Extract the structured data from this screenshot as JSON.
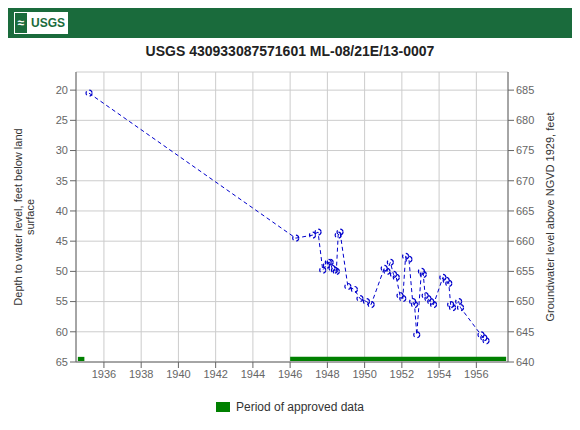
{
  "chart_data": {
    "type": "line",
    "title": "USGS 430933087571601 ML-08/21E/13-0007",
    "y_label": "Depth to water level, feet below land\n surface",
    "y2_label": "Groundwater level above NGVD 1929, feet",
    "annotations": [
      {
        "text": "≈"
      },
      {
        "text": "USGS",
        "color": "#1a6b3c"
      }
    ],
    "xlim": [
      1934.5,
      1957.7
    ],
    "xticks": [
      1936,
      1938,
      1940,
      1942,
      1944,
      1946,
      1948,
      1950,
      1952,
      1954,
      1956
    ],
    "ylim": [
      65,
      17
    ],
    "yticks": [
      20,
      25,
      30,
      35,
      40,
      45,
      50,
      55,
      60,
      65
    ],
    "y2lim": [
      640,
      688
    ],
    "y2ticks": [
      685,
      680,
      675,
      670,
      665,
      660,
      655,
      650,
      645,
      640
    ],
    "grid": true,
    "legend": "bottom",
    "x": [
      1935.2,
      1946.3,
      1947.2,
      1947.5,
      1947.75,
      1947.95,
      1948.05,
      1948.15,
      1948.25,
      1948.38,
      1948.48,
      1948.58,
      1948.68,
      1949.1,
      1949.45,
      1949.75,
      1950.1,
      1950.35,
      1951.05,
      1951.2,
      1951.38,
      1951.55,
      1951.7,
      1951.9,
      1952.05,
      1952.2,
      1952.38,
      1952.58,
      1952.68,
      1952.8,
      1953.05,
      1953.15,
      1953.25,
      1953.4,
      1953.55,
      1953.7,
      1954.2,
      1954.38,
      1954.52,
      1954.62,
      1954.72,
      1955.05,
      1955.15,
      1956.25,
      1956.4,
      1956.52
    ],
    "series": [
      {
        "type": "line",
        "color": "#0000cc",
        "line_style": "dashed",
        "marker": "circle",
        "values": [
          20.5,
          44.5,
          44.0,
          43.5,
          49.8,
          49.0,
          48.5,
          48.5,
          49.5,
          49.8,
          50.0,
          44.0,
          43.5,
          52.5,
          53.0,
          54.5,
          55.0,
          55.5,
          49.5,
          50.0,
          48.5,
          50.5,
          51.0,
          54.0,
          54.5,
          47.5,
          48.0,
          55.0,
          55.5,
          60.5,
          50.0,
          50.5,
          54.0,
          54.5,
          55.0,
          55.5,
          51.0,
          51.5,
          52.0,
          55.5,
          56.0,
          55.0,
          56.0,
          60.5,
          61.0,
          61.5
        ]
      },
      {
        "type": "bar",
        "orientation": "horizontal",
        "name": "Period of approved data",
        "color": "#008000",
        "y": 64.5,
        "height": 0.7,
        "starts": [
          1934.6,
          1946.0
        ],
        "widths": [
          0.35,
          11.6
        ]
      }
    ]
  }
}
